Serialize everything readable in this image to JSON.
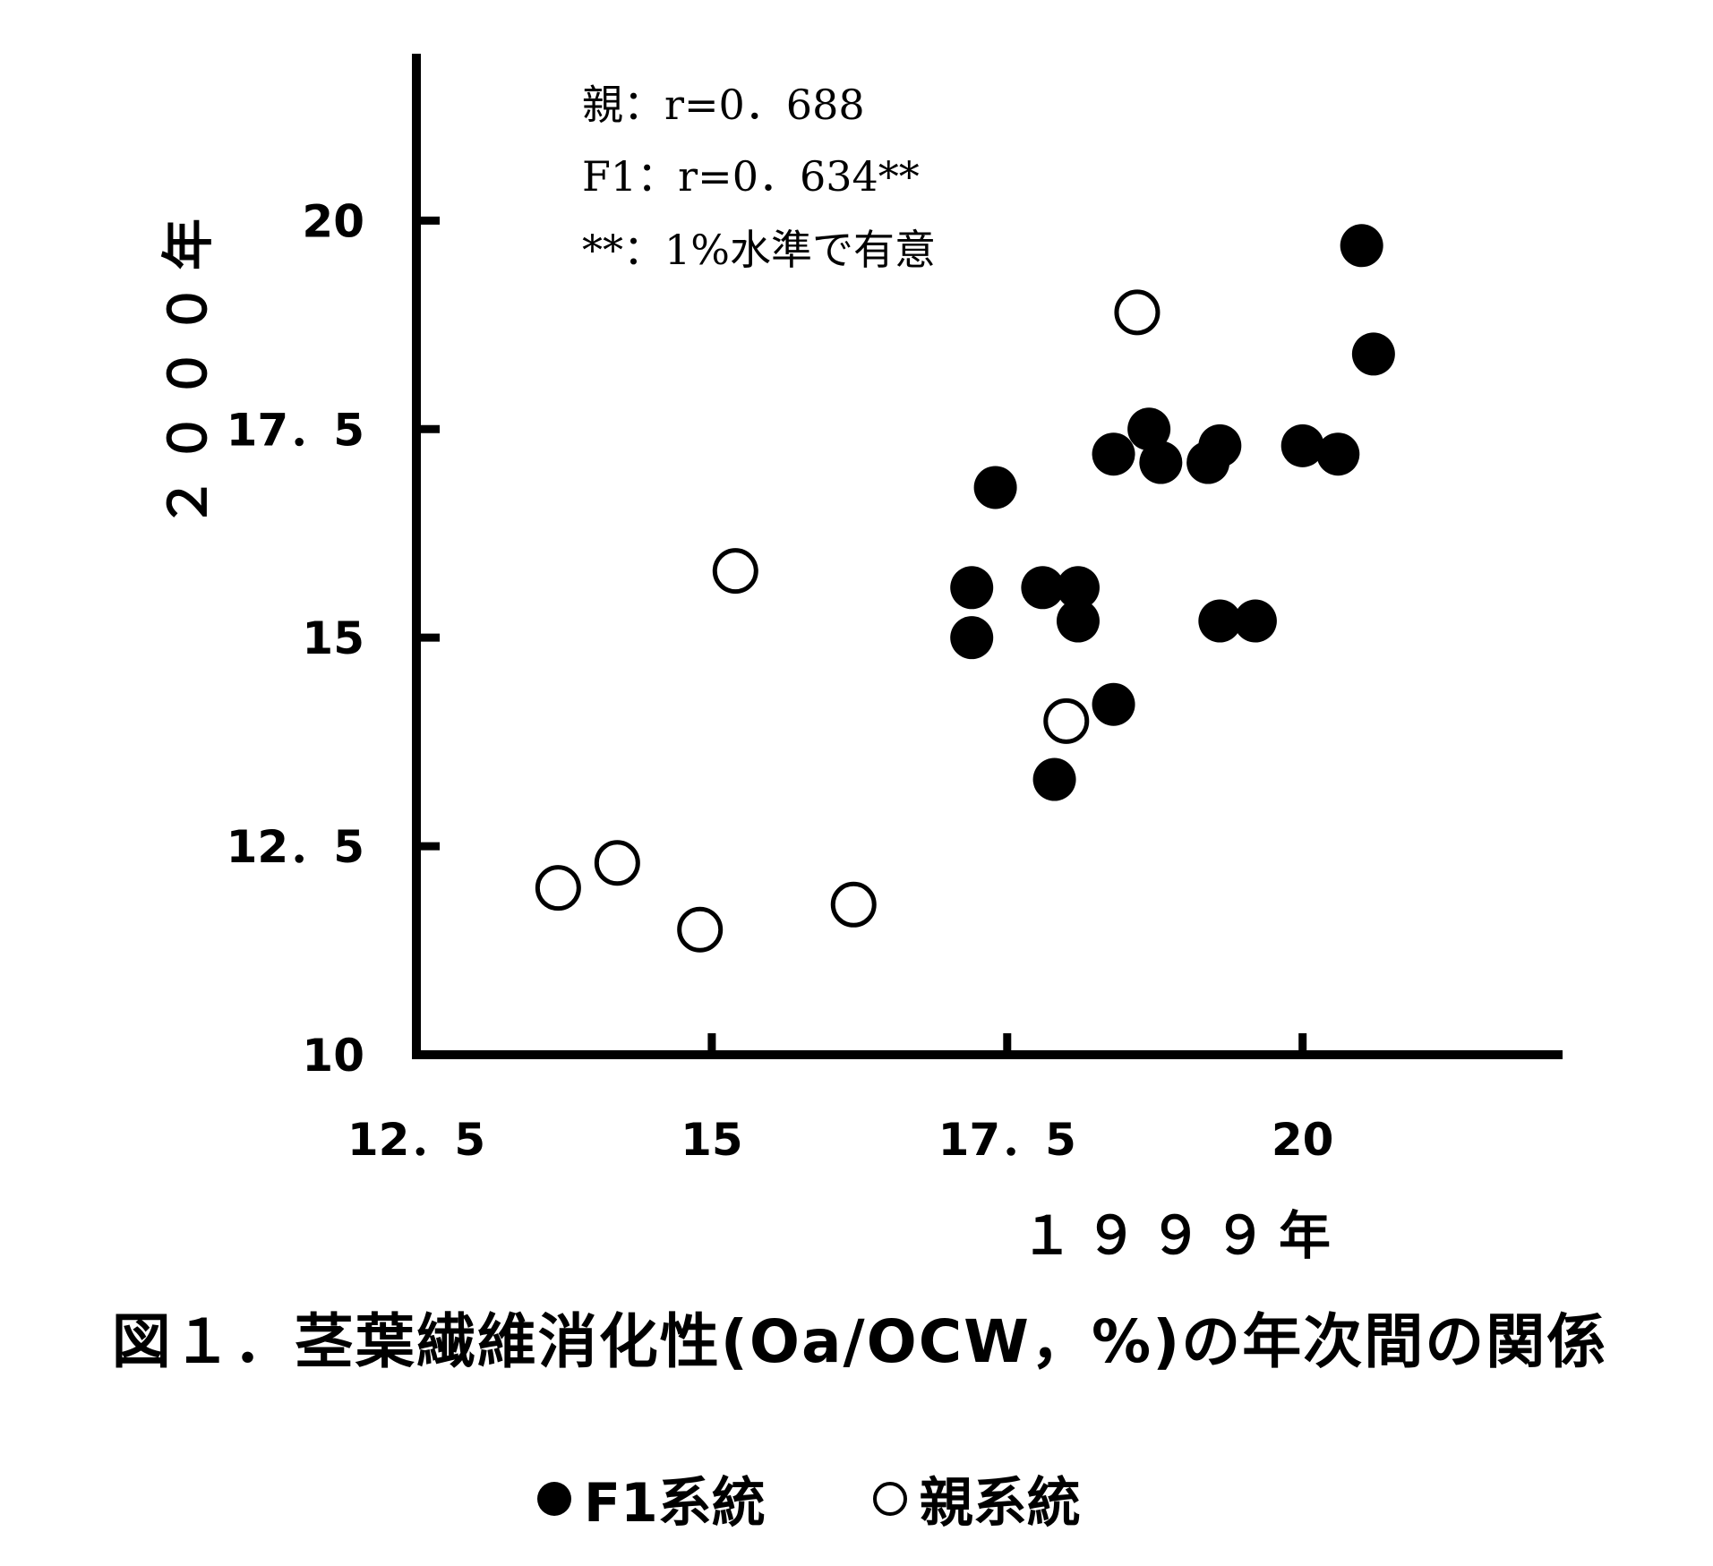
{
  "figure_title": "図１．茎葉繊維消化性(Oa/OCW，%)の年次間の関係",
  "annotation": {
    "line1": "親：r=0．688",
    "line2": "F1：r=0．634**",
    "line3": "**：1%水準で有意"
  },
  "legend": {
    "f1_label": "F1系統",
    "parent_label": "親系統"
  },
  "chart_data": {
    "type": "scatter",
    "xlabel": "１９９９年",
    "ylabel": "２０００年",
    "xlim": [
      12.5,
      22.2
    ],
    "ylim": [
      10,
      22.0
    ],
    "x_ticks": [
      12.5,
      15,
      17.5,
      20
    ],
    "x_tick_labels": [
      "12．5",
      "15",
      "17．5",
      "20"
    ],
    "y_ticks": [
      10,
      12.5,
      15,
      17.5,
      20
    ],
    "y_tick_labels": [
      "10",
      "12．5",
      "15",
      "17．5",
      "20"
    ],
    "grid": false,
    "legend_position": "bottom",
    "series": [
      {
        "name": "F1系統",
        "marker": "filled-circle",
        "color": "#000000",
        "points": [
          [
            20.5,
            19.7
          ],
          [
            20.6,
            18.4
          ],
          [
            17.4,
            16.8
          ],
          [
            18.4,
            17.2
          ],
          [
            18.7,
            17.5
          ],
          [
            18.8,
            17.1
          ],
          [
            19.2,
            17.1
          ],
          [
            19.3,
            17.3
          ],
          [
            20.0,
            17.3
          ],
          [
            20.3,
            17.2
          ],
          [
            17.2,
            15.6
          ],
          [
            17.8,
            15.6
          ],
          [
            18.1,
            15.6
          ],
          [
            17.2,
            15.0
          ],
          [
            18.1,
            15.2
          ],
          [
            19.3,
            15.2
          ],
          [
            19.6,
            15.2
          ],
          [
            18.4,
            14.2
          ],
          [
            17.9,
            13.3
          ]
        ]
      },
      {
        "name": "親系統",
        "marker": "open-circle",
        "color": "#000000",
        "points": [
          [
            18.6,
            18.9
          ],
          [
            15.2,
            15.8
          ],
          [
            18.0,
            14.0
          ],
          [
            13.7,
            12.0
          ],
          [
            14.2,
            12.3
          ],
          [
            14.9,
            11.5
          ],
          [
            16.2,
            11.8
          ]
        ]
      }
    ]
  }
}
